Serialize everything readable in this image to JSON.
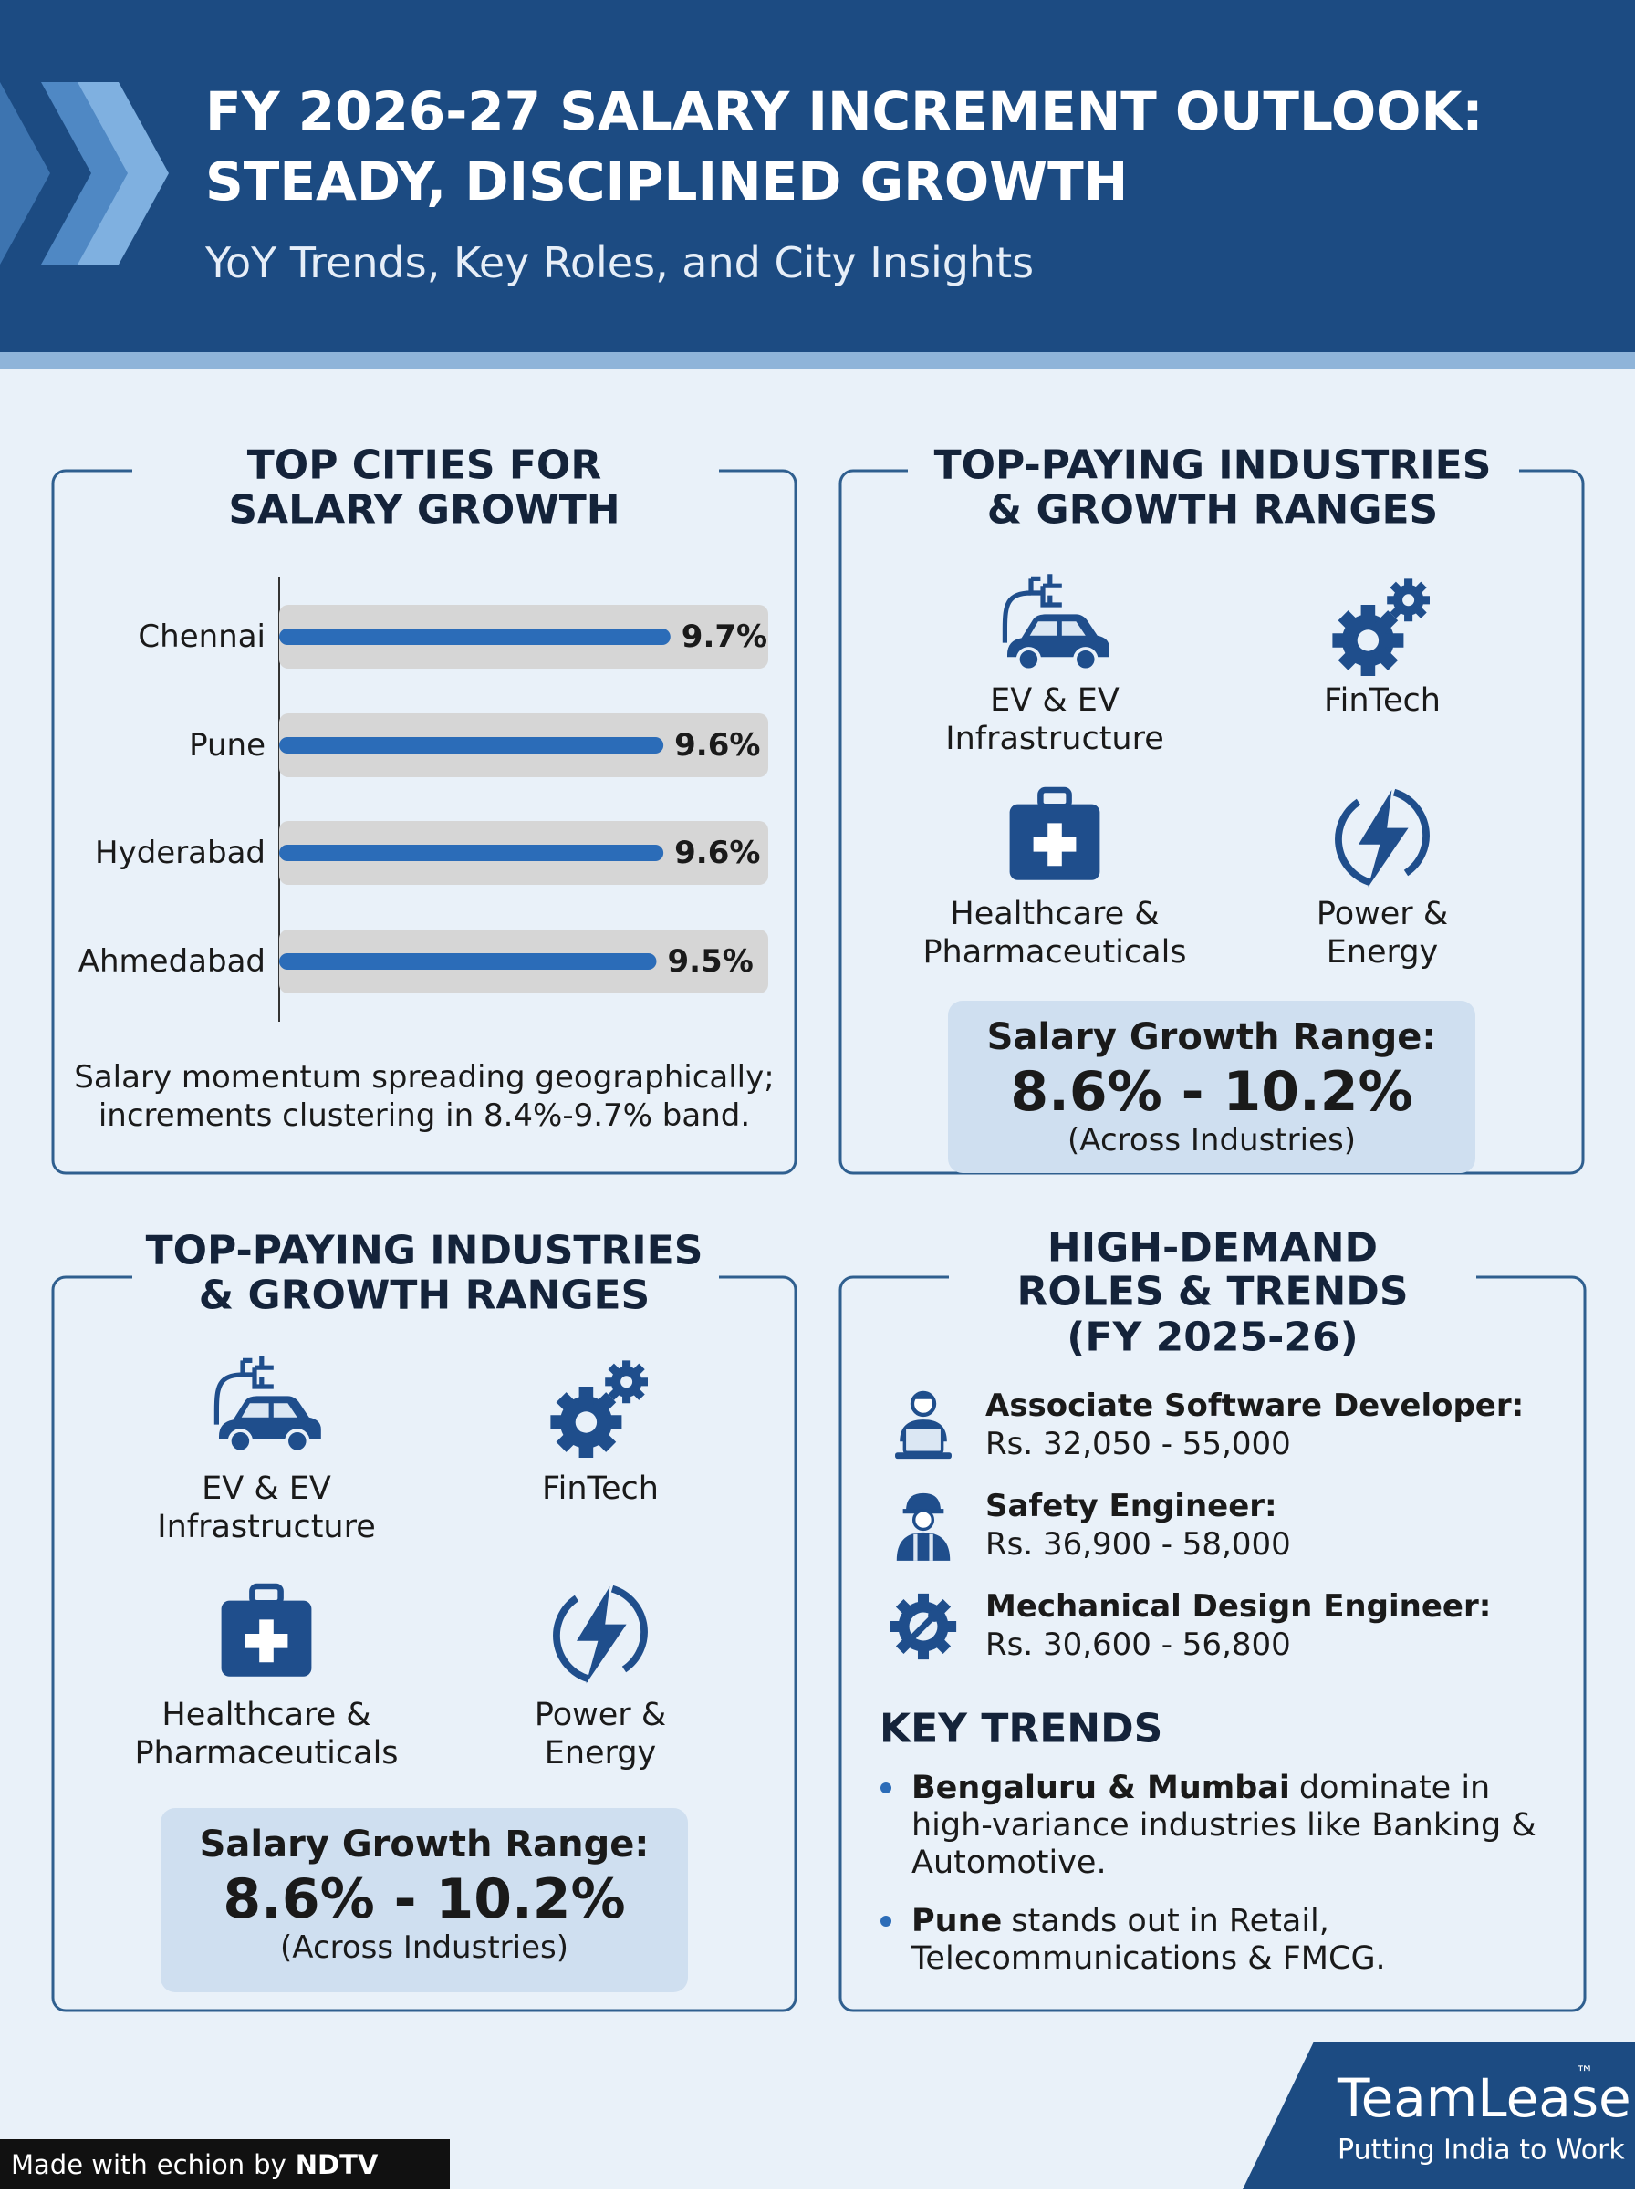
{
  "header": {
    "title_lines": [
      "FY 2026-27 SALARY INCREMENT OUTLOOK:",
      "STEADY, DISCIPLINED GROWTH"
    ],
    "subtitle": "YoY Trends, Key Roles, and City Insights"
  },
  "cities_panel": {
    "title_lines": [
      "TOP CITIES FOR",
      "SALARY GROWTH"
    ],
    "note_lines": [
      "Salary momentum spreading geographically;",
      "increments clustering in 8.4%-9.7% band."
    ]
  },
  "chart_data": {
    "type": "bar",
    "orientation": "horizontal",
    "categories": [
      "Chennai",
      "Pune",
      "Hyderabad",
      "Ahmedabad"
    ],
    "values": [
      9.7,
      9.6,
      9.6,
      9.5
    ],
    "value_labels": [
      "9.7%",
      "9.6%",
      "9.6%",
      "9.5%"
    ],
    "color": "#2b6cb8",
    "xlim": [
      4.1,
      11.1
    ]
  },
  "industries_panels": [
    {
      "title_lines": [
        "TOP-PAYING INDUSTRIES",
        "& GROWTH RANGES"
      ],
      "industries": [
        {
          "lines": [
            "EV & EV",
            "Infrastructure"
          ]
        },
        {
          "lines": [
            "FinTech"
          ]
        },
        {
          "lines": [
            "Healthcare &",
            "Pharmaceuticals"
          ]
        },
        {
          "lines": [
            "Power &",
            "Energy"
          ]
        }
      ],
      "range": {
        "label": "Salary Growth Range:",
        "value": "8.6% - 10.2%",
        "note": "(Across Industries)"
      }
    },
    {
      "title_lines": [
        "TOP-PAYING INDUSTRIES",
        "& GROWTH RANGES"
      ],
      "industries": [
        {
          "lines": [
            "EV & EV",
            "Infrastructure"
          ]
        },
        {
          "lines": [
            "FinTech"
          ]
        },
        {
          "lines": [
            "Healthcare &",
            "Pharmaceuticals"
          ]
        },
        {
          "lines": [
            "Power &",
            "Energy"
          ]
        }
      ],
      "range": {
        "label": "Salary Growth Range:",
        "value": "8.6% - 10.2%",
        "note": "(Across Industries)"
      }
    }
  ],
  "roles_panel": {
    "title_lines": [
      "HIGH-DEMAND",
      "ROLES & TRENDS",
      "(FY 2025-26)"
    ],
    "roles": [
      {
        "title": "Associate Software Developer:",
        "pay": "Rs. 32,050 - 55,000"
      },
      {
        "title": "Safety Engineer:",
        "pay": "Rs. 36,900 - 58,000"
      },
      {
        "title": "Mechanical Design Engineer:",
        "pay": "Rs. 30,600 - 56,800"
      }
    ],
    "trends_title": "KEY TRENDS",
    "trends": [
      {
        "bold": "Bengaluru & Mumbai",
        "lines": [
          "dominate in",
          "high-variance industries like Banking &",
          "Automotive."
        ]
      },
      {
        "bold": "Pune",
        "lines": [
          "stands out in Retail,",
          "Telecommunications & FMCG."
        ]
      }
    ]
  },
  "footer": {
    "brand": "TeamLease",
    "tm": "™",
    "tagline": "Putting India to Work",
    "made_with": "Made with",
    "echion": "echion",
    "by": "by",
    "ndtv": "NDTV"
  }
}
